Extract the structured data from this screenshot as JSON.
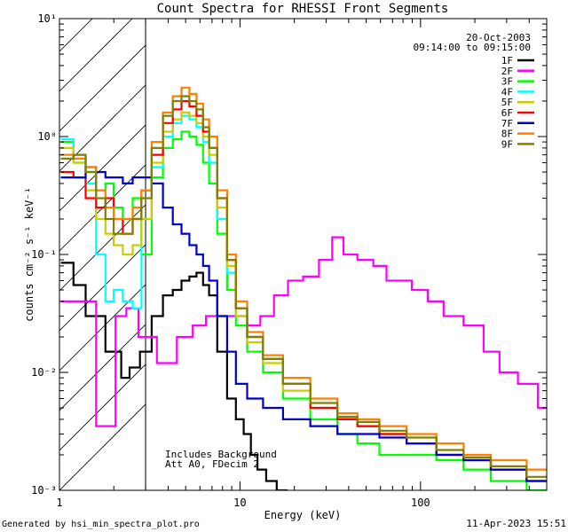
{
  "chart_data": {
    "type": "line",
    "title": "Count Spectra for RHESSI Front Segments",
    "xlabel": "Energy (keV)",
    "ylabel": "counts cm⁻² s⁻¹ keV⁻¹",
    "xscale": "log",
    "yscale": "log",
    "xlim": [
      1,
      500
    ],
    "ylim": [
      0.001,
      10
    ],
    "x_tick_labels": [
      "1",
      "10",
      "100"
    ],
    "y_tick_labels": [
      "10⁻³",
      "10⁻²",
      "10⁻¹",
      "10⁰",
      "10¹"
    ],
    "date": "20-Oct-2003",
    "time_range": "09:14:00 to 09:15:00",
    "shaded_region_keV": [
      1,
      3
    ],
    "legend_position": "top-right",
    "annotation_lines": [
      "Includes Background",
      "Att A0, FDecim 2"
    ],
    "footer_left": "Generated by hsi_min_spectra_plot.pro",
    "footer_right": "11-Apr-2023 15:51",
    "series": [
      {
        "name": "1F",
        "color": "#000000",
        "x": [
          1.1,
          1.3,
          1.5,
          1.7,
          1.9,
          2.1,
          2.3,
          2.6,
          3,
          3.5,
          4,
          4.5,
          5,
          5.5,
          6,
          6.5,
          7,
          8,
          9,
          10,
          11,
          12,
          13,
          15,
          17
        ],
        "values": [
          0.085,
          0.055,
          0.03,
          0.03,
          0.015,
          0.015,
          0.009,
          0.011,
          0.015,
          0.03,
          0.045,
          0.05,
          0.06,
          0.065,
          0.07,
          0.055,
          0.045,
          0.015,
          0.006,
          0.004,
          0.003,
          0.002,
          0.0015,
          0.0012,
          0.001
        ]
      },
      {
        "name": "2F",
        "color": "#ff00ff",
        "x": [
          1.1,
          1.3,
          1.5,
          1.7,
          1.9,
          2.2,
          2.5,
          3,
          4,
          5,
          6,
          7,
          8,
          10,
          12,
          14,
          17,
          20,
          25,
          30,
          35,
          40,
          50,
          60,
          70,
          80,
          100,
          120,
          150,
          200,
          250,
          300,
          400,
          500
        ],
        "values": [
          0.04,
          0.04,
          0.04,
          0.0035,
          0.0035,
          0.03,
          0.035,
          0.02,
          0.012,
          0.02,
          0.025,
          0.03,
          0.03,
          0.03,
          0.025,
          0.03,
          0.045,
          0.06,
          0.065,
          0.09,
          0.14,
          0.1,
          0.09,
          0.08,
          0.06,
          0.06,
          0.05,
          0.04,
          0.03,
          0.025,
          0.015,
          0.01,
          0.008,
          0.005
        ]
      },
      {
        "name": "3F",
        "color": "#00ff00",
        "x": [
          1.1,
          1.3,
          1.5,
          1.7,
          1.9,
          2.1,
          2.4,
          2.7,
          3,
          3.5,
          4,
          4.5,
          5,
          5.5,
          6,
          6.5,
          7,
          8,
          9,
          10,
          12,
          15,
          20,
          30,
          40,
          50,
          70,
          100,
          150,
          200,
          300,
          500
        ],
        "values": [
          0.9,
          0.7,
          0.5,
          0.35,
          0.4,
          0.25,
          0.2,
          0.3,
          0.1,
          0.45,
          0.8,
          0.95,
          1.1,
          1.0,
          0.85,
          0.6,
          0.4,
          0.15,
          0.05,
          0.025,
          0.015,
          0.01,
          0.006,
          0.004,
          0.003,
          0.0025,
          0.002,
          0.002,
          0.0018,
          0.0015,
          0.0012,
          0.001
        ]
      },
      {
        "name": "4F",
        "color": "#00ffff",
        "x": [
          1.1,
          1.3,
          1.5,
          1.7,
          1.9,
          2.1,
          2.4,
          2.7,
          3,
          3.5,
          4,
          4.5,
          5,
          5.5,
          6,
          6.5,
          7,
          8,
          9,
          10,
          12,
          15,
          20,
          30,
          40,
          50,
          70,
          100,
          150,
          200,
          300,
          500
        ],
        "values": [
          0.95,
          0.6,
          0.4,
          0.1,
          0.04,
          0.05,
          0.04,
          0.035,
          0.2,
          0.55,
          1.0,
          1.3,
          1.5,
          1.4,
          1.2,
          0.9,
          0.6,
          0.2,
          0.07,
          0.03,
          0.02,
          0.013,
          0.008,
          0.005,
          0.004,
          0.0035,
          0.003,
          0.0025,
          0.002,
          0.0018,
          0.0015,
          0.0012
        ]
      },
      {
        "name": "5F",
        "color": "#cccc00",
        "x": [
          1.1,
          1.3,
          1.5,
          1.7,
          1.9,
          2.1,
          2.4,
          2.7,
          3,
          3.5,
          4,
          4.5,
          5,
          5.5,
          6,
          6.5,
          7,
          8,
          9,
          10,
          12,
          15,
          20,
          30,
          40,
          50,
          70,
          100,
          150,
          200,
          300,
          500
        ],
        "values": [
          0.8,
          0.6,
          0.35,
          0.2,
          0.15,
          0.12,
          0.1,
          0.12,
          0.2,
          0.6,
          1.1,
          1.4,
          1.6,
          1.5,
          1.3,
          1.0,
          0.7,
          0.25,
          0.08,
          0.03,
          0.018,
          0.012,
          0.007,
          0.005,
          0.004,
          0.0035,
          0.003,
          0.0025,
          0.002,
          0.0018,
          0.0015,
          0.0012
        ]
      },
      {
        "name": "6F",
        "color": "#ff0000",
        "x": [
          1.1,
          1.3,
          1.5,
          1.7,
          1.9,
          2.1,
          2.4,
          2.7,
          3,
          3.5,
          4,
          4.5,
          5,
          5.5,
          6,
          6.5,
          7,
          8,
          9,
          10,
          12,
          15,
          20,
          30,
          40,
          50,
          70,
          100,
          150,
          200,
          300,
          500
        ],
        "values": [
          0.5,
          0.45,
          0.3,
          0.25,
          0.3,
          0.2,
          0.15,
          0.2,
          0.35,
          0.7,
          1.3,
          1.7,
          2.0,
          1.8,
          1.5,
          1.1,
          0.8,
          0.3,
          0.09,
          0.035,
          0.02,
          0.013,
          0.008,
          0.005,
          0.004,
          0.0035,
          0.003,
          0.0025,
          0.002,
          0.0018,
          0.0015,
          0.0012
        ]
      },
      {
        "name": "7F",
        "color": "#0000cc",
        "x": [
          1.1,
          1.3,
          1.5,
          1.7,
          1.9,
          2.1,
          2.4,
          2.7,
          3,
          3.5,
          4,
          4.5,
          5,
          5.5,
          6,
          6.5,
          7,
          8,
          9,
          10,
          12,
          15,
          20,
          30,
          40,
          50,
          70,
          100,
          150,
          200,
          300,
          500
        ],
        "values": [
          0.45,
          0.45,
          0.55,
          0.5,
          0.45,
          0.45,
          0.4,
          0.45,
          0.45,
          0.4,
          0.25,
          0.18,
          0.15,
          0.12,
          0.1,
          0.08,
          0.06,
          0.03,
          0.015,
          0.008,
          0.006,
          0.005,
          0.004,
          0.0035,
          0.003,
          0.003,
          0.0028,
          0.0025,
          0.002,
          0.0018,
          0.0015,
          0.0012
        ]
      },
      {
        "name": "8F",
        "color": "#ff8000",
        "x": [
          1.1,
          1.3,
          1.5,
          1.7,
          1.9,
          2.1,
          2.4,
          2.7,
          3,
          3.5,
          4,
          4.5,
          5,
          5.5,
          6,
          6.5,
          7,
          8,
          9,
          10,
          12,
          15,
          20,
          30,
          40,
          50,
          70,
          100,
          150,
          200,
          300,
          500
        ],
        "values": [
          0.7,
          0.65,
          0.55,
          0.35,
          0.25,
          0.2,
          0.2,
          0.25,
          0.35,
          0.9,
          1.6,
          2.2,
          2.6,
          2.3,
          1.9,
          1.4,
          1.0,
          0.35,
          0.1,
          0.04,
          0.022,
          0.014,
          0.009,
          0.006,
          0.0045,
          0.004,
          0.0035,
          0.003,
          0.0025,
          0.002,
          0.0018,
          0.0015
        ]
      },
      {
        "name": "9F",
        "color": "#808000",
        "x": [
          1.1,
          1.3,
          1.5,
          1.7,
          1.9,
          2.1,
          2.4,
          2.7,
          3,
          3.5,
          4,
          4.5,
          5,
          5.5,
          6,
          6.5,
          7,
          8,
          9,
          10,
          12,
          15,
          20,
          30,
          40,
          50,
          70,
          100,
          150,
          200,
          300,
          500
        ],
        "values": [
          0.65,
          0.7,
          0.5,
          0.3,
          0.2,
          0.15,
          0.15,
          0.2,
          0.3,
          0.8,
          1.5,
          2.0,
          2.2,
          2.0,
          1.7,
          1.2,
          0.8,
          0.3,
          0.09,
          0.035,
          0.02,
          0.013,
          0.008,
          0.0055,
          0.0042,
          0.0038,
          0.0032,
          0.0028,
          0.0022,
          0.0019,
          0.0016,
          0.0013
        ]
      }
    ]
  }
}
